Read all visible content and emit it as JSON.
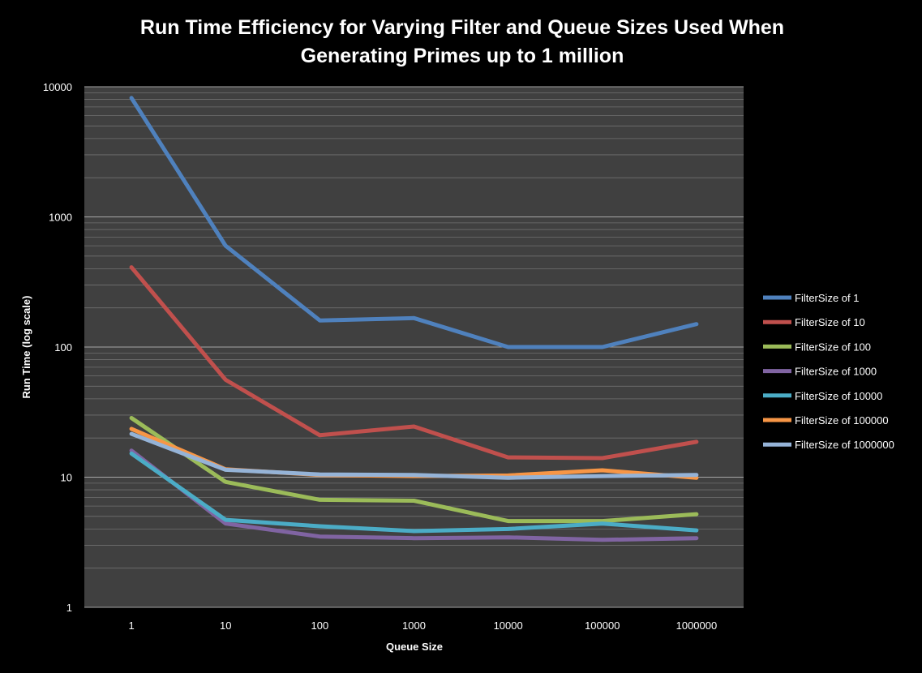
{
  "chart_data": {
    "type": "line",
    "title_lines": [
      "Run Time Efficiency for Varying Filter and Queue Sizes Used When",
      "Generating Primes up to 1 million"
    ],
    "xlabel": "Queue Size",
    "ylabel": "Run Time (log scale)",
    "y_scale": "log",
    "ylim": [
      1,
      10000
    ],
    "yticks": [
      1,
      10,
      100,
      1000,
      10000
    ],
    "ytick_labels": [
      "1",
      "10",
      "100",
      "1000",
      "10000"
    ],
    "grid": true,
    "legend_position": "right",
    "categories": [
      "1",
      "10",
      "100",
      "1000",
      "10000",
      "100000",
      "1000000"
    ],
    "series": [
      {
        "name": "FilterSize of 1",
        "color": "#4f81bd",
        "values": [
          8200,
          600,
          160,
          167,
          100,
          100,
          150
        ]
      },
      {
        "name": "FilterSize of 10",
        "color": "#c0504d",
        "values": [
          410,
          56,
          21,
          24.5,
          14.2,
          14,
          18.7
        ]
      },
      {
        "name": "FilterSize of 100",
        "color": "#9bbb59",
        "values": [
          28.5,
          9.2,
          6.7,
          6.6,
          4.6,
          4.6,
          5.2
        ]
      },
      {
        "name": "FilterSize of 1000",
        "color": "#8064a2",
        "values": [
          16,
          4.4,
          3.5,
          3.4,
          3.45,
          3.3,
          3.4
        ]
      },
      {
        "name": "FilterSize of 10000",
        "color": "#4bacc6",
        "values": [
          15.2,
          4.7,
          4.2,
          3.85,
          4.0,
          4.4,
          3.9
        ]
      },
      {
        "name": "FilterSize of 100000",
        "color": "#f79646",
        "values": [
          23.5,
          11.5,
          10.4,
          10.2,
          10.3,
          11.3,
          9.9
        ]
      },
      {
        "name": "FilterSize of 1000000",
        "color": "#95b3d7",
        "values": [
          21.5,
          11.4,
          10.5,
          10.4,
          9.9,
          10.2,
          10.4
        ]
      }
    ]
  }
}
